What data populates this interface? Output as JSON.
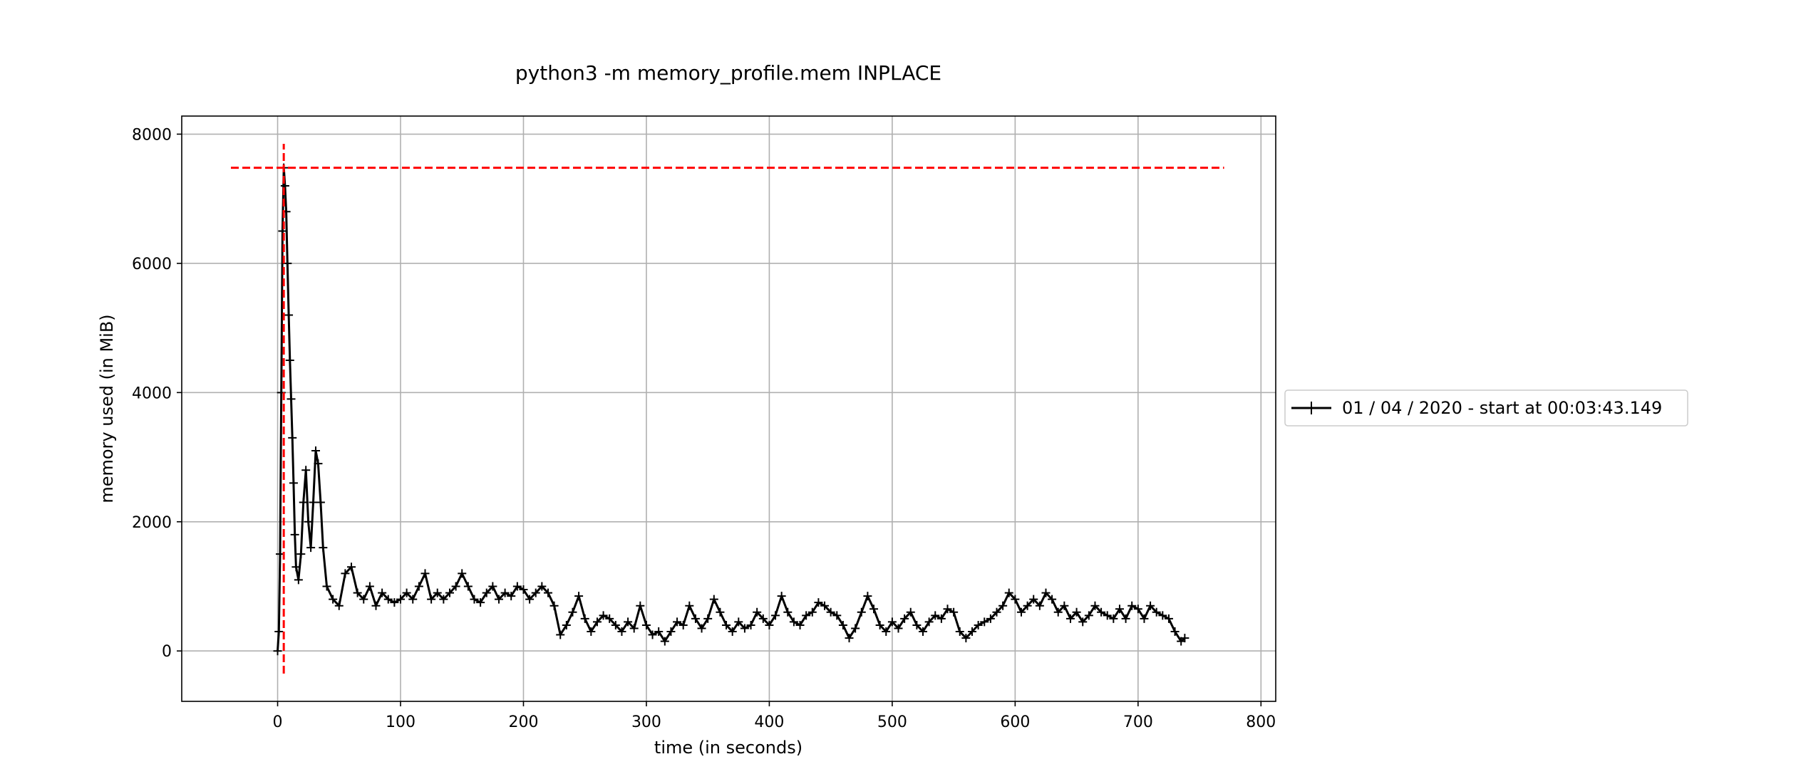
{
  "chart_data": {
    "type": "line",
    "title": "python3 -m memory_profile.mem INPLACE",
    "xlabel": "time (in seconds)",
    "ylabel": "memory used (in MiB)",
    "xlim": [
      -78,
      812
    ],
    "ylim": [
      -780,
      8280
    ],
    "xticks": [
      0,
      100,
      200,
      300,
      400,
      500,
      600,
      700,
      800
    ],
    "yticks": [
      0,
      2000,
      4000,
      6000,
      8000
    ],
    "grid": true,
    "legend_position": "outside-right",
    "colors": {
      "series": "#000000",
      "markers": "#ff0000",
      "grid": "#b0b0b0"
    },
    "series": [
      {
        "name": "01 / 04 / 2020 - start at 00:03:43.149",
        "marker": "+",
        "points": [
          [
            0,
            0
          ],
          [
            1,
            300
          ],
          [
            2,
            1500
          ],
          [
            3,
            4000
          ],
          [
            4,
            6500
          ],
          [
            5,
            7480
          ],
          [
            6,
            7200
          ],
          [
            7,
            6800
          ],
          [
            8,
            6000
          ],
          [
            9,
            5200
          ],
          [
            10,
            4500
          ],
          [
            11,
            3900
          ],
          [
            12,
            3300
          ],
          [
            13,
            2600
          ],
          [
            14,
            1800
          ],
          [
            15,
            1300
          ],
          [
            17,
            1100
          ],
          [
            19,
            1500
          ],
          [
            21,
            2300
          ],
          [
            23,
            2800
          ],
          [
            25,
            2000
          ],
          [
            27,
            1600
          ],
          [
            29,
            2300
          ],
          [
            31,
            3100
          ],
          [
            33,
            2900
          ],
          [
            35,
            2300
          ],
          [
            37,
            1600
          ],
          [
            40,
            1000
          ],
          [
            45,
            800
          ],
          [
            50,
            700
          ],
          [
            55,
            1200
          ],
          [
            60,
            1300
          ],
          [
            65,
            900
          ],
          [
            70,
            800
          ],
          [
            75,
            1000
          ],
          [
            80,
            700
          ],
          [
            85,
            900
          ],
          [
            90,
            800
          ],
          [
            95,
            750
          ],
          [
            100,
            800
          ],
          [
            105,
            900
          ],
          [
            110,
            800
          ],
          [
            115,
            1000
          ],
          [
            120,
            1200
          ],
          [
            125,
            800
          ],
          [
            130,
            900
          ],
          [
            135,
            800
          ],
          [
            140,
            900
          ],
          [
            145,
            1000
          ],
          [
            150,
            1200
          ],
          [
            155,
            1000
          ],
          [
            160,
            800
          ],
          [
            165,
            750
          ],
          [
            170,
            900
          ],
          [
            175,
            1000
          ],
          [
            180,
            800
          ],
          [
            185,
            900
          ],
          [
            190,
            850
          ],
          [
            195,
            1000
          ],
          [
            200,
            950
          ],
          [
            205,
            800
          ],
          [
            210,
            900
          ],
          [
            215,
            1000
          ],
          [
            220,
            900
          ],
          [
            225,
            700
          ],
          [
            230,
            250
          ],
          [
            235,
            400
          ],
          [
            240,
            600
          ],
          [
            245,
            850
          ],
          [
            250,
            500
          ],
          [
            255,
            300
          ],
          [
            260,
            450
          ],
          [
            265,
            550
          ],
          [
            270,
            500
          ],
          [
            275,
            400
          ],
          [
            280,
            300
          ],
          [
            285,
            450
          ],
          [
            290,
            350
          ],
          [
            295,
            700
          ],
          [
            300,
            400
          ],
          [
            305,
            250
          ],
          [
            310,
            300
          ],
          [
            315,
            150
          ],
          [
            320,
            300
          ],
          [
            325,
            450
          ],
          [
            330,
            400
          ],
          [
            335,
            700
          ],
          [
            340,
            500
          ],
          [
            345,
            350
          ],
          [
            350,
            500
          ],
          [
            355,
            800
          ],
          [
            360,
            600
          ],
          [
            365,
            400
          ],
          [
            370,
            300
          ],
          [
            375,
            450
          ],
          [
            380,
            350
          ],
          [
            385,
            400
          ],
          [
            390,
            600
          ],
          [
            395,
            500
          ],
          [
            400,
            400
          ],
          [
            405,
            550
          ],
          [
            410,
            850
          ],
          [
            415,
            600
          ],
          [
            420,
            450
          ],
          [
            425,
            400
          ],
          [
            430,
            550
          ],
          [
            435,
            600
          ],
          [
            440,
            750
          ],
          [
            445,
            700
          ],
          [
            450,
            600
          ],
          [
            455,
            550
          ],
          [
            460,
            400
          ],
          [
            465,
            200
          ],
          [
            470,
            350
          ],
          [
            475,
            600
          ],
          [
            480,
            850
          ],
          [
            485,
            650
          ],
          [
            490,
            400
          ],
          [
            495,
            300
          ],
          [
            500,
            450
          ],
          [
            505,
            350
          ],
          [
            510,
            500
          ],
          [
            515,
            600
          ],
          [
            520,
            400
          ],
          [
            525,
            300
          ],
          [
            530,
            450
          ],
          [
            535,
            550
          ],
          [
            540,
            500
          ],
          [
            545,
            650
          ],
          [
            550,
            600
          ],
          [
            555,
            300
          ],
          [
            560,
            200
          ],
          [
            565,
            300
          ],
          [
            570,
            400
          ],
          [
            575,
            450
          ],
          [
            580,
            500
          ],
          [
            585,
            600
          ],
          [
            590,
            700
          ],
          [
            595,
            900
          ],
          [
            600,
            800
          ],
          [
            605,
            600
          ],
          [
            610,
            700
          ],
          [
            615,
            800
          ],
          [
            620,
            700
          ],
          [
            625,
            900
          ],
          [
            630,
            800
          ],
          [
            635,
            600
          ],
          [
            640,
            700
          ],
          [
            645,
            500
          ],
          [
            650,
            600
          ],
          [
            655,
            450
          ],
          [
            660,
            550
          ],
          [
            665,
            700
          ],
          [
            670,
            600
          ],
          [
            675,
            550
          ],
          [
            680,
            500
          ],
          [
            685,
            650
          ],
          [
            690,
            500
          ],
          [
            695,
            700
          ],
          [
            700,
            650
          ],
          [
            705,
            500
          ],
          [
            710,
            700
          ],
          [
            715,
            600
          ],
          [
            720,
            550
          ],
          [
            725,
            500
          ],
          [
            730,
            300
          ],
          [
            735,
            150
          ],
          [
            738,
            200
          ]
        ]
      }
    ],
    "annotations": {
      "peak_hline": {
        "y": 7480,
        "x_from": -38,
        "x_to": 770,
        "style": "dashed",
        "color": "#ff0000"
      },
      "peak_vline": {
        "x": 5,
        "y_from": -350,
        "y_to": 7850,
        "style": "dashed",
        "color": "#ff0000"
      }
    }
  }
}
